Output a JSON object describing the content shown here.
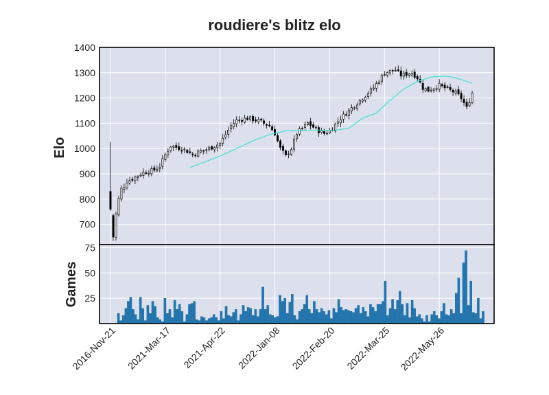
{
  "chart_data": {
    "type": "candlestick",
    "title": "roudiere's blitz elo",
    "colors": {
      "panel_bg": "#dbe0ec",
      "grid": "#ffffff",
      "candle_up": "#ffffff",
      "candle_down": "#000000",
      "candle_edge": "#000000",
      "moving_average": "#40e0d0",
      "volume_bar": "#1f77b4"
    },
    "price_panel": {
      "ylabel": "Elo",
      "ylim": [
        620,
        1400
      ],
      "yticks": [
        700,
        800,
        900,
        1000,
        1100,
        1200,
        1300,
        1400
      ],
      "grid": true
    },
    "volume_panel": {
      "ylabel": "Games",
      "ylim": [
        0,
        78
      ],
      "yticks": [
        25,
        50,
        75
      ],
      "grid": true
    },
    "x_axis": {
      "index_range": [
        -4,
        140
      ],
      "ticks": [
        {
          "index": 0,
          "label": "2016-Nov-21"
        },
        {
          "index": 20,
          "label": "2021-Mar-17"
        },
        {
          "index": 40,
          "label": "2021-Apr-22"
        },
        {
          "index": 60,
          "label": "2022-Jan-08"
        },
        {
          "index": 80,
          "label": "2022-Feb-20"
        },
        {
          "index": 100,
          "label": "2022-Mar-25"
        },
        {
          "index": 120,
          "label": "2022-May-26"
        }
      ]
    },
    "close_anchors": [
      [
        0,
        760
      ],
      [
        1,
        655
      ],
      [
        2,
        740
      ],
      [
        3,
        800
      ],
      [
        4,
        840
      ],
      [
        5,
        850
      ],
      [
        6,
        870
      ],
      [
        8,
        880
      ],
      [
        12,
        905
      ],
      [
        16,
        915
      ],
      [
        18,
        930
      ],
      [
        20,
        975
      ],
      [
        22,
        1010
      ],
      [
        26,
        1000
      ],
      [
        28,
        990
      ],
      [
        30,
        975
      ],
      [
        32,
        985
      ],
      [
        36,
        1000
      ],
      [
        40,
        1020
      ],
      [
        44,
        1090
      ],
      [
        46,
        1110
      ],
      [
        50,
        1120
      ],
      [
        54,
        1110
      ],
      [
        58,
        1090
      ],
      [
        60,
        1060
      ],
      [
        62,
        1000
      ],
      [
        64,
        970
      ],
      [
        66,
        1000
      ],
      [
        68,
        1060
      ],
      [
        72,
        1100
      ],
      [
        76,
        1070
      ],
      [
        78,
        1060
      ],
      [
        80,
        1070
      ],
      [
        84,
        1120
      ],
      [
        88,
        1160
      ],
      [
        92,
        1200
      ],
      [
        96,
        1240
      ],
      [
        98,
        1270
      ],
      [
        100,
        1300
      ],
      [
        104,
        1310
      ],
      [
        106,
        1290
      ],
      [
        110,
        1300
      ],
      [
        112,
        1280
      ],
      [
        114,
        1240
      ],
      [
        116,
        1230
      ],
      [
        120,
        1250
      ],
      [
        124,
        1230
      ],
      [
        126,
        1220
      ],
      [
        128,
        1200
      ],
      [
        130,
        1160
      ],
      [
        131,
        1190
      ],
      [
        132,
        1220
      ]
    ],
    "moving_average": {
      "window": 30,
      "points": [
        [
          29,
          925
        ],
        [
          34,
          945
        ],
        [
          40,
          970
        ],
        [
          46,
          1000
        ],
        [
          52,
          1030
        ],
        [
          58,
          1055
        ],
        [
          64,
          1070
        ],
        [
          70,
          1070
        ],
        [
          76,
          1073
        ],
        [
          82,
          1072
        ],
        [
          87,
          1080
        ],
        [
          92,
          1120
        ],
        [
          97,
          1140
        ],
        [
          102,
          1190
        ],
        [
          107,
          1235
        ],
        [
          112,
          1265
        ],
        [
          117,
          1283
        ],
        [
          122,
          1287
        ],
        [
          126,
          1280
        ],
        [
          130,
          1265
        ],
        [
          132,
          1258
        ]
      ]
    },
    "games_per_period": [
      10,
      3,
      8,
      15,
      22,
      26,
      14,
      9,
      4,
      26,
      15,
      3,
      18,
      10,
      22,
      17,
      6,
      4,
      2,
      25,
      10,
      14,
      6,
      23,
      14,
      19,
      12,
      2,
      9,
      19,
      20,
      22,
      4,
      3,
      7,
      6,
      3,
      5,
      6,
      9,
      6,
      3,
      12,
      5,
      17,
      8,
      7,
      11,
      14,
      3,
      9,
      18,
      12,
      16,
      15,
      8,
      14,
      7,
      14,
      36,
      14,
      18,
      9,
      8,
      6,
      7,
      28,
      22,
      25,
      10,
      21,
      29,
      8,
      4,
      12,
      14,
      19,
      28,
      14,
      10,
      22,
      14,
      11,
      15,
      12,
      9,
      13,
      5,
      15,
      11,
      24,
      16,
      13,
      14,
      13,
      12,
      11,
      15,
      18,
      10,
      16,
      12,
      7,
      19,
      16,
      12,
      19,
      19,
      22,
      42,
      8,
      15,
      24,
      14,
      23,
      32,
      19,
      8,
      20,
      6,
      23,
      15,
      7,
      9,
      5,
      2,
      8,
      2,
      9,
      12,
      8,
      5,
      12,
      20,
      9,
      8,
      14,
      10,
      30,
      45,
      10,
      60,
      72,
      18,
      42,
      11,
      10,
      25,
      5,
      12
    ]
  }
}
